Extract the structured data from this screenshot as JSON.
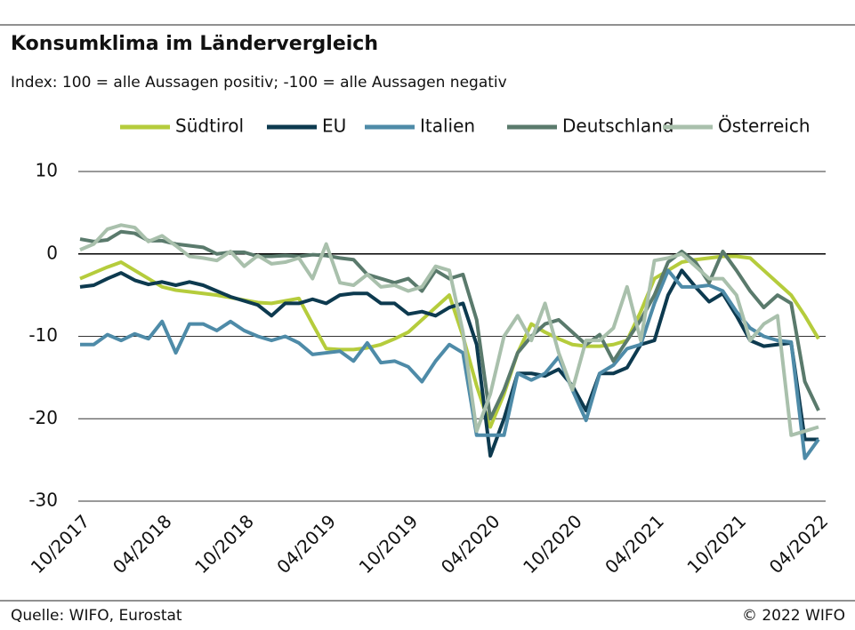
{
  "chart_data": {
    "type": "line",
    "title": "Konsumklima im Ländervergleich",
    "subtitle": "Index: 100 = alle Aussagen positiv; -100 =  alle Aussagen negativ",
    "source": "Quelle: WIFO, Eurostat",
    "copyright": "© 2022 WIFO",
    "categories": [
      "10/2017",
      null,
      null,
      null,
      null,
      null,
      "04/2018",
      null,
      null,
      null,
      null,
      null,
      "10/2018",
      null,
      null,
      null,
      null,
      null,
      "04/2019",
      null,
      null,
      null,
      null,
      null,
      "10/2019",
      null,
      null,
      null,
      null,
      null,
      "04/2020",
      null,
      null,
      null,
      null,
      null,
      "10/2020",
      null,
      null,
      null,
      null,
      null,
      "04/2021",
      null,
      null,
      null,
      null,
      null,
      "10/2021",
      null,
      null,
      null,
      null,
      null,
      "04/2022"
    ],
    "ylim": [
      -30,
      10
    ],
    "yticks": [
      -30,
      -20,
      -10,
      0,
      10
    ],
    "grid": true,
    "legend": "top",
    "series": [
      {
        "name": "Südtirol",
        "color": "#b5cc3c",
        "values": [
          -3,
          -2.3,
          -1.6,
          -1,
          -2,
          -3,
          -4,
          -4.4,
          -4.6,
          -4.8,
          -5,
          -5.3,
          -5.6,
          -5.9,
          -6,
          -5.7,
          -5.4,
          -8.5,
          -11.5,
          -11.6,
          -11.6,
          -11.4,
          -11,
          -10.3,
          -9.5,
          -8,
          -6.5,
          -5,
          -10,
          -16,
          -21,
          -17,
          -12,
          -8.5,
          -9.5,
          -10.3,
          -11,
          -11.2,
          -11.2,
          -11,
          -10.5,
          -7,
          -3,
          -2,
          -1,
          -0.7,
          -0.5,
          -0.3,
          -0.3,
          -0.5,
          -2,
          -3.5,
          -5,
          -7.5,
          -10.3
        ]
      },
      {
        "name": "EU",
        "color": "#0d3a4f",
        "values": [
          -4,
          -3.8,
          -3,
          -2.3,
          -3.2,
          -3.7,
          -3.4,
          -3.8,
          -3.4,
          -3.8,
          -4.5,
          -5.2,
          -5.7,
          -6.2,
          -7.5,
          -6,
          -6,
          -5.5,
          -6,
          -5,
          -4.8,
          -4.8,
          -6,
          -6,
          -7.3,
          -7,
          -7.5,
          -6.5,
          -6,
          -11,
          -24.5,
          -20,
          -14.5,
          -14.5,
          -14.8,
          -14,
          -16,
          -19,
          -14.5,
          -14.5,
          -13.8,
          -11,
          -10.5,
          -5,
          -2,
          -4,
          -5.8,
          -4.8,
          -7.5,
          -10.5,
          -11.2,
          -11,
          -10.8,
          -22.5,
          -22.5
        ]
      },
      {
        "name": "Italien",
        "color": "#4e8ba8",
        "values": [
          -11,
          -11,
          -9.8,
          -10.5,
          -9.7,
          -10.3,
          -8.2,
          -12,
          -8.5,
          -8.5,
          -9.3,
          -8.2,
          -9.3,
          -10,
          -10.5,
          -10,
          -10.8,
          -12.2,
          -12,
          -11.8,
          -13,
          -10.8,
          -13.2,
          -13,
          -13.7,
          -15.5,
          -13,
          -11,
          -12,
          -22,
          -22,
          -22,
          -14.5,
          -15.3,
          -14.5,
          -12.5,
          -16.5,
          -20.2,
          -14.5,
          -13.5,
          -11.5,
          -11,
          -6,
          -2,
          -4,
          -4,
          -3.8,
          -4.5,
          -7,
          -9,
          -10,
          -10.5,
          -10.7,
          -24.8,
          -22.5
        ]
      },
      {
        "name": "Deutschland",
        "color": "#5a7a6c",
        "values": [
          1.8,
          1.5,
          1.7,
          2.7,
          2.5,
          1.6,
          1.6,
          1.2,
          1,
          0.8,
          0,
          0.2,
          0.2,
          -0.3,
          -0.3,
          -0.2,
          -0.3,
          -0.1,
          -0.2,
          -0.5,
          -0.7,
          -2.5,
          -3,
          -3.5,
          -3,
          -4.5,
          -2,
          -3,
          -2.5,
          -8,
          -20,
          -16.5,
          -12,
          -10,
          -8.5,
          -8,
          -9.5,
          -11,
          -9.8,
          -13,
          -10.5,
          -8,
          -5,
          -1,
          0.3,
          -1,
          -3.5,
          0.3,
          -2,
          -4.5,
          -6.5,
          -5,
          -6,
          -15.5,
          -19
        ]
      },
      {
        "name": "Österreich",
        "color": "#a9c0ac",
        "values": [
          0.5,
          1.2,
          3,
          3.5,
          3.2,
          1.5,
          2.2,
          1,
          -0.3,
          -0.5,
          -0.8,
          0.3,
          -1.5,
          -0.2,
          -1.2,
          -1,
          -0.5,
          -3,
          1.2,
          -3.5,
          -3.8,
          -2.5,
          -4,
          -3.8,
          -4.5,
          -4,
          -1.5,
          -2,
          -9.5,
          -21.5,
          -17,
          -10,
          -7.5,
          -10.5,
          -6,
          -12,
          -16.5,
          -10.5,
          -10.5,
          -9,
          -4,
          -10.5,
          -0.8,
          -0.5,
          0,
          -1.5,
          -3,
          -3,
          -5,
          -10.5,
          -8.5,
          -7.5,
          -22,
          -21.5,
          -21
        ]
      }
    ]
  }
}
